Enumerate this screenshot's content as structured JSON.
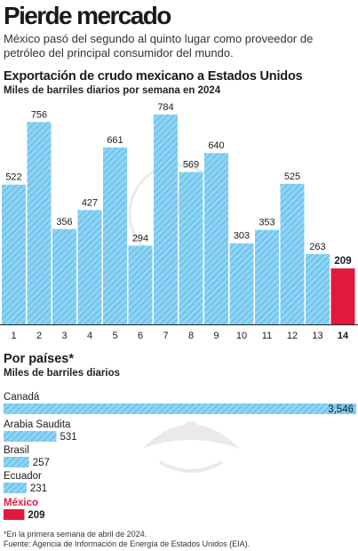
{
  "header": {
    "title": "Pierde mercado",
    "dek": "México pasó del segundo al quinto lugar como proveedor de petróleo del principal consumidor del mundo."
  },
  "colors": {
    "bar_fill": "#8fd3f4",
    "bar_hatch": "#49b3e3",
    "highlight": "#e11a3b",
    "axis": "#222222"
  },
  "chart_data": [
    {
      "type": "bar",
      "title": "Exportación de crudo mexicano a Estados Unidos",
      "subtitle": "Miles de barriles diarios por semana en 2024",
      "categories": [
        "1",
        "2",
        "3",
        "4",
        "5",
        "6",
        "7",
        "8",
        "9",
        "10",
        "11",
        "12",
        "13",
        "14"
      ],
      "values": [
        522,
        756,
        356,
        427,
        661,
        294,
        784,
        569,
        640,
        303,
        353,
        525,
        263,
        209
      ],
      "highlight_index": 13,
      "ylim": [
        0,
        800
      ],
      "grid": false
    },
    {
      "type": "bar",
      "orientation": "horizontal",
      "title": "Por países*",
      "subtitle": "Miles de barriles diarios",
      "categories": [
        "Canadá",
        "Arabia Saudita",
        "Brasil",
        "Ecuador",
        "México"
      ],
      "values": [
        3546,
        531,
        257,
        231,
        209
      ],
      "value_labels": [
        "3,546",
        "531",
        "257",
        "231",
        "209"
      ],
      "highlight_index": 4
    }
  ],
  "footnotes": {
    "note": "*En la primera semana de abril de 2024.",
    "source": "Fuente: Agencia de Información de Energía de Estados Unidos (EIA)."
  },
  "emblem_icon": "mexican-eagle-seal-icon"
}
